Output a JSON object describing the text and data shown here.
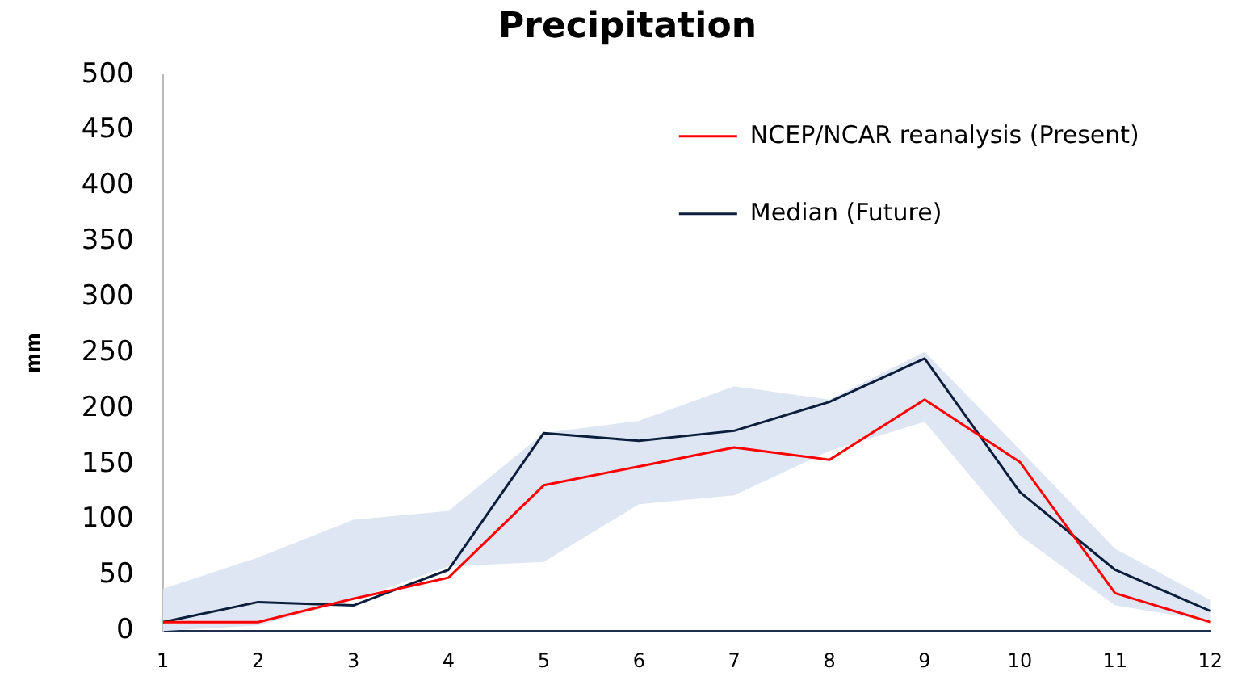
{
  "chart_data": {
    "type": "line",
    "title": "Precipitation",
    "ylabel": "mm",
    "x": [
      1,
      2,
      3,
      4,
      5,
      6,
      7,
      8,
      9,
      10,
      11,
      12
    ],
    "xlim": [
      1,
      12
    ],
    "xticks": [
      1,
      2,
      3,
      4,
      5,
      6,
      7,
      8,
      9,
      10,
      11,
      12
    ],
    "ylim": [
      0,
      500
    ],
    "yticks": [
      0,
      50,
      100,
      150,
      200,
      250,
      300,
      350,
      400,
      450,
      500
    ],
    "grid": false,
    "legend": "top right",
    "marker": "none",
    "line_style": "solid",
    "series": [
      {
        "name": "NCEP/NCAR reanalysis (Present)",
        "color": "#ff0000",
        "values": [
          8,
          8,
          29,
          48,
          131,
          148,
          165,
          154,
          208,
          152,
          34,
          8
        ]
      },
      {
        "name": "Median (Future)",
        "color": "#0d1e3d",
        "values": [
          8,
          26,
          23,
          55,
          178,
          171,
          180,
          206,
          245,
          125,
          55,
          18
        ],
        "lower": [
          0,
          5,
          28,
          58,
          62,
          114,
          122,
          162,
          188,
          86,
          23,
          9
        ],
        "upper": [
          38,
          66,
          100,
          108,
          178,
          189,
          220,
          208,
          251,
          163,
          74,
          28
        ]
      }
    ]
  }
}
